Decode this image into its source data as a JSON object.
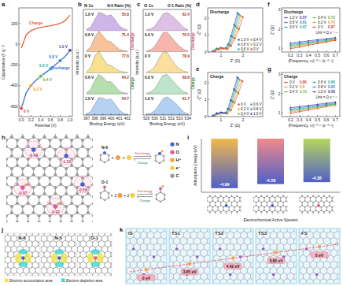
{
  "panel_labels": [
    "a",
    "b",
    "c",
    "d",
    "e",
    "f",
    "g",
    "h",
    "i",
    "j",
    "k"
  ],
  "chart_data": [
    {
      "type": "line",
      "x_label": "Potential (V)",
      "y_label": "Capacitance (F g⁻¹)",
      "x": [
        0,
        0.1,
        0.2,
        0.3,
        0.4,
        0.5,
        0.6,
        0.7,
        0.8,
        0.9,
        1.0
      ],
      "series": [
        {
          "name": "Charge",
          "color": "#e8603c",
          "values": [
            -40,
            90,
            130,
            150,
            160,
            170,
            178,
            188,
            200,
            225,
            280
          ]
        },
        {
          "name": "Discharge",
          "color": "#3a6fd8",
          "values": [
            -620,
            -470,
            -400,
            -350,
            -310,
            -275,
            -240,
            -200,
            -160,
            -120,
            -60
          ]
        }
      ],
      "points": [
        {
          "label": "1.0 V",
          "x": 1.0,
          "y": -60,
          "color": "#4b3fa8"
        },
        {
          "label": "0.8 V",
          "x": 0.8,
          "y": -160,
          "color": "#2f7fd8"
        },
        {
          "label": "0.6 V",
          "x": 0.6,
          "y": -240,
          "color": "#1fa89a"
        },
        {
          "label": "0.4 V",
          "x": 0.4,
          "y": -310,
          "color": "#6cb33e"
        },
        {
          "label": "0.2 V",
          "x": 0.2,
          "y": -400,
          "color": "#f09a28"
        },
        {
          "label": "0 V",
          "x": 0,
          "y": -620,
          "color": "#e0443a"
        }
      ],
      "xlim": [
        -0.05,
        1.05
      ],
      "xticks": [
        {
          "value": 0,
          "label": "0.0"
        },
        0.2,
        0.4,
        0.6,
        0.8,
        {
          "value": 1,
          "label": "1.0"
        }
      ],
      "ylim": [
        -700,
        350
      ],
      "yticks": [
        -600,
        -400,
        -200,
        0,
        200
      ]
    },
    {
      "type": "area",
      "title": "N 1s",
      "subtitle": "N-6 Ratio (%)",
      "x_label": "Binding Energy (eV)",
      "y_label": "Intensity (a.u.)",
      "tick_labels": "x",
      "x": [
        397,
        397.5,
        398,
        398.5,
        399,
        399.5,
        400,
        400.5,
        401,
        401.5,
        402
      ],
      "xlim": [
        396.6,
        402.4
      ],
      "xticks": [
        397,
        398,
        399,
        400,
        401,
        402
      ],
      "ylim": [
        0,
        1
      ],
      "series": [
        {
          "name": "1.0 V",
          "ratio": 55.8,
          "color": "#c8a8e6",
          "values": [
            0.05,
            0.15,
            0.45,
            0.75,
            0.7,
            0.6,
            0.65,
            0.45,
            0.2,
            0.08,
            0.03
          ]
        },
        {
          "name": "0.6 V",
          "ratio": 71.4,
          "color": "#f6b98a",
          "values": [
            0.05,
            0.2,
            0.6,
            0.85,
            0.65,
            0.45,
            0.4,
            0.25,
            0.1,
            0.05,
            0.03
          ]
        },
        {
          "name": "0 V",
          "ratio": 77.6,
          "color": "#f7dc7a",
          "values": [
            0.05,
            0.22,
            0.7,
            0.9,
            0.6,
            0.35,
            0.3,
            0.18,
            0.08,
            0.04,
            0.02
          ]
        },
        {
          "name": "0.6 V",
          "ratio": 64.2,
          "color": "#a8dba0",
          "values": [
            0.05,
            0.18,
            0.55,
            0.8,
            0.68,
            0.5,
            0.5,
            0.32,
            0.12,
            0.05,
            0.03
          ]
        },
        {
          "name": "1.0 V",
          "ratio": 54.7,
          "color": "#a9c9ee",
          "values": [
            0.05,
            0.15,
            0.45,
            0.72,
            0.7,
            0.62,
            0.66,
            0.45,
            0.2,
            0.08,
            0.03
          ]
        }
      ],
      "annotations": [
        "Discharge",
        "Charge"
      ]
    },
    {
      "type": "area",
      "title": "O 1s",
      "subtitle": "O-1 Ratio (%)",
      "x_label": "Binding Energy (eV)",
      "y_label": "Intensity (a.u.)",
      "tick_labels": "x",
      "x": [
        529,
        529.5,
        530,
        530.5,
        531,
        531.5,
        532,
        532.5,
        533,
        533.5,
        534
      ],
      "xlim": [
        528.6,
        534.4
      ],
      "xticks": [
        529,
        530,
        531,
        532,
        533,
        534
      ],
      "ylim": [
        0,
        1
      ],
      "series": [
        {
          "name": "1.0 V",
          "ratio": 62.4,
          "color": "#d8b4e2",
          "values": [
            0.03,
            0.07,
            0.18,
            0.42,
            0.68,
            0.75,
            0.62,
            0.48,
            0.3,
            0.12,
            0.04
          ]
        },
        {
          "name": "0.6 V",
          "ratio": 70.5,
          "color": "#f4a9a0",
          "values": [
            0.03,
            0.08,
            0.22,
            0.5,
            0.78,
            0.8,
            0.6,
            0.4,
            0.22,
            0.09,
            0.03
          ]
        },
        {
          "name": "0 V",
          "ratio": 78.9,
          "color": "#f9d98c",
          "values": [
            0.03,
            0.09,
            0.26,
            0.58,
            0.86,
            0.84,
            0.56,
            0.32,
            0.16,
            0.07,
            0.03
          ]
        },
        {
          "name": "0.6 V",
          "ratio": 69.8,
          "color": "#b0e0c0",
          "values": [
            0.03,
            0.08,
            0.21,
            0.49,
            0.77,
            0.8,
            0.61,
            0.41,
            0.23,
            0.09,
            0.03
          ]
        },
        {
          "name": "1.0 V",
          "ratio": 61.7,
          "color": "#a4c8f0",
          "values": [
            0.03,
            0.07,
            0.18,
            0.41,
            0.67,
            0.75,
            0.63,
            0.49,
            0.31,
            0.12,
            0.04
          ]
        }
      ],
      "annotations": [
        "Discharge",
        "Charge"
      ]
    },
    {
      "type": "scatter",
      "title": "Discharge",
      "x_label": "Z' (Ω)",
      "y_label": "-Z'' (Ω)",
      "xlim": [
        0.4,
        2.9
      ],
      "xticks": [
        1,
        2
      ],
      "ylim": [
        0,
        2.6
      ],
      "yticks": [
        0,
        1,
        2
      ],
      "line_style": "solid",
      "marker": "circle",
      "legend": "lower right",
      "series": [
        {
          "name": "1.0 V",
          "color": "#4b3fa8",
          "x": [
            0.62,
            0.8,
            1.0,
            1.2,
            1.32,
            1.45,
            1.6,
            1.75
          ],
          "values": [
            0.05,
            0.2,
            0.25,
            0.22,
            0.45,
            0.95,
            1.6,
            2.3
          ]
        },
        {
          "name": "0.8 V",
          "color": "#2f7fd8",
          "x": [
            0.64,
            0.82,
            1.02,
            1.22,
            1.35,
            1.48,
            1.63,
            1.78
          ],
          "values": [
            0.05,
            0.19,
            0.24,
            0.21,
            0.43,
            0.92,
            1.55,
            2.25
          ]
        },
        {
          "name": "0.6 V",
          "color": "#1fa89a",
          "x": [
            0.66,
            0.84,
            1.04,
            1.24,
            1.38,
            1.52,
            1.67,
            1.83
          ],
          "values": [
            0.05,
            0.18,
            0.23,
            0.2,
            0.42,
            0.9,
            1.5,
            2.2
          ]
        },
        {
          "name": "0.4 V",
          "color": "#6cb33e",
          "x": [
            0.68,
            0.86,
            1.06,
            1.26,
            1.41,
            1.56,
            1.72,
            1.88
          ],
          "values": [
            0.05,
            0.17,
            0.22,
            0.19,
            0.4,
            0.86,
            1.45,
            2.15
          ]
        },
        {
          "name": "0.2 V",
          "color": "#f09a28",
          "x": [
            0.7,
            0.88,
            1.08,
            1.28,
            1.44,
            1.6,
            1.77,
            1.94
          ],
          "values": [
            0.05,
            0.16,
            0.21,
            0.18,
            0.38,
            0.83,
            1.4,
            2.1
          ]
        },
        {
          "name": "0 V",
          "color": "#e0443a",
          "x": [
            0.72,
            0.9,
            1.1,
            1.3,
            1.47,
            1.64,
            1.82,
            2.0
          ],
          "values": [
            0.05,
            0.15,
            0.2,
            0.17,
            0.36,
            0.8,
            1.35,
            2.05
          ]
        }
      ]
    },
    {
      "type": "scatter",
      "title": "Charge",
      "x_label": "Z' (Ω)",
      "y_label": "-Z'' (Ω)",
      "xlim": [
        0.4,
        2.9
      ],
      "xticks": [
        1,
        2
      ],
      "ylim": [
        0,
        2.6
      ],
      "yticks": [
        0,
        1,
        2
      ],
      "line_style": "solid",
      "marker": "circle",
      "legend": "lower right",
      "series": [
        {
          "name": "0 V",
          "color": "#e0443a",
          "x": [
            0.72,
            0.9,
            1.1,
            1.3,
            1.46,
            1.62,
            1.8,
            1.98
          ],
          "values": [
            0.05,
            0.15,
            0.2,
            0.17,
            0.37,
            0.82,
            1.38,
            2.08
          ]
        },
        {
          "name": "0.2 V",
          "color": "#f09a28",
          "x": [
            0.7,
            0.88,
            1.08,
            1.28,
            1.43,
            1.58,
            1.75,
            1.92
          ],
          "values": [
            0.05,
            0.16,
            0.21,
            0.18,
            0.39,
            0.85,
            1.43,
            2.12
          ]
        },
        {
          "name": "0.4 V",
          "color": "#6cb33e",
          "x": [
            0.68,
            0.86,
            1.06,
            1.26,
            1.4,
            1.55,
            1.7,
            1.86
          ],
          "values": [
            0.05,
            0.17,
            0.22,
            0.19,
            0.41,
            0.88,
            1.48,
            2.17
          ]
        },
        {
          "name": "0.6 V",
          "color": "#1fa89a",
          "x": [
            0.66,
            0.84,
            1.04,
            1.24,
            1.37,
            1.51,
            1.66,
            1.81
          ],
          "values": [
            0.05,
            0.18,
            0.23,
            0.2,
            0.43,
            0.91,
            1.52,
            2.22
          ]
        },
        {
          "name": "0.8 V",
          "color": "#2f7fd8",
          "x": [
            0.64,
            0.82,
            1.02,
            1.22,
            1.34,
            1.47,
            1.62,
            1.77
          ],
          "values": [
            0.05,
            0.19,
            0.24,
            0.21,
            0.44,
            0.94,
            1.57,
            2.27
          ]
        },
        {
          "name": "1.0 V",
          "color": "#4b3fa8",
          "x": [
            0.62,
            0.8,
            1.0,
            1.2,
            1.31,
            1.44,
            1.59,
            1.74
          ],
          "values": [
            0.05,
            0.2,
            0.25,
            0.22,
            0.46,
            0.97,
            1.62,
            2.32
          ]
        }
      ]
    },
    {
      "type": "line",
      "title": "Discharge",
      "subtitle": "Unit = Ω s⁻⁰·⁵",
      "x_label": "(Frequency, ω)⁻⁰·⁵ (s⁻⁰·⁵)",
      "y_label": "Z' (Ω)",
      "marker": "circle",
      "legend": "upper left",
      "x": [
        0.2,
        0.3,
        0.4,
        0.5,
        0.6,
        0.7
      ],
      "xlim": [
        0.1,
        0.75
      ],
      "xticks": [
        0.2,
        0.3,
        0.4,
        0.5,
        0.6,
        0.7
      ],
      "ylim": [
        0.8,
        3.1
      ],
      "yticks": [
        1,
        2,
        3
      ],
      "series": [
        {
          "name": "1.0 V",
          "slope": 0.57,
          "color": "#4b3fa8",
          "values": [
            1.26,
            1.32,
            1.38,
            1.44,
            1.49,
            1.55
          ]
        },
        {
          "name": "0.8 V",
          "slope": 0.61,
          "color": "#2f7fd8",
          "values": [
            1.2,
            1.26,
            1.32,
            1.39,
            1.45,
            1.51
          ]
        },
        {
          "name": "0.6 V",
          "slope": 0.67,
          "color": "#1fa89a",
          "values": [
            1.14,
            1.21,
            1.28,
            1.35,
            1.41,
            1.48
          ]
        },
        {
          "name": "0.4 V",
          "slope": 0.72,
          "color": "#6cb33e",
          "values": [
            1.08,
            1.16,
            1.23,
            1.3,
            1.37,
            1.44
          ]
        },
        {
          "name": "0.2 V",
          "slope": 0.79,
          "color": "#f09a28",
          "values": [
            1.03,
            1.11,
            1.19,
            1.27,
            1.34,
            1.42
          ]
        },
        {
          "name": "0 V",
          "slope": 0.87,
          "color": "#e0443a",
          "values": [
            0.97,
            1.06,
            1.15,
            1.24,
            1.32,
            1.41
          ]
        }
      ]
    },
    {
      "type": "line",
      "title": "Charge",
      "subtitle": "Unit = Ω s⁻⁰·⁵",
      "x_label": "(Frequency, ω)⁻⁰·⁵ (s⁻⁰·⁵)",
      "y_label": "Z' (Ω)",
      "marker": "circle",
      "legend": "upper left",
      "x": [
        0.2,
        0.3,
        0.4,
        0.5,
        0.6,
        0.7
      ],
      "xlim": [
        0.1,
        0.75
      ],
      "xticks": [
        0.2,
        0.3,
        0.4,
        0.5,
        0.6,
        0.7
      ],
      "ylim": [
        0.8,
        3.1
      ],
      "yticks": [
        1,
        2,
        3
      ],
      "series": [
        {
          "name": "0 V",
          "slope": 0.86,
          "color": "#e0443a",
          "values": [
            0.97,
            1.06,
            1.14,
            1.23,
            1.32,
            1.4
          ]
        },
        {
          "name": "0.2 V",
          "slope": 0.8,
          "color": "#f09a28",
          "values": [
            1.03,
            1.11,
            1.19,
            1.27,
            1.35,
            1.43
          ]
        },
        {
          "name": "0.4 V",
          "slope": 0.73,
          "color": "#6cb33e",
          "values": [
            1.09,
            1.16,
            1.23,
            1.31,
            1.38,
            1.45
          ]
        },
        {
          "name": "0.6 V",
          "slope": 0.66,
          "color": "#1fa89a",
          "values": [
            1.14,
            1.21,
            1.27,
            1.34,
            1.41,
            1.47
          ]
        },
        {
          "name": "0.8 V",
          "slope": 0.62,
          "color": "#2f7fd8",
          "values": [
            1.2,
            1.27,
            1.33,
            1.39,
            1.45,
            1.51
          ]
        },
        {
          "name": "1.0 V",
          "slope": 0.58,
          "color": "#4b3fa8",
          "values": [
            1.27,
            1.32,
            1.38,
            1.44,
            1.5,
            1.56
          ]
        }
      ]
    },
    {
      "type": "bar",
      "y_label": "Adsorption Energy (eV)",
      "x_label": "Electrochemical Active Species",
      "categories": [
        null,
        null,
        null
      ],
      "values": [
        -4.99,
        -4.58,
        -4.38
      ],
      "colors": [
        "#f2b84b",
        "#f08a8a",
        "#b6d65a"
      ],
      "ylim": [
        -5.4,
        0
      ],
      "tick_labels": false,
      "data_labels": true
    }
  ],
  "reaction_scheme": {
    "atom_charges": [
      "-0.49",
      "-1.13",
      "-0.58",
      "-0.97",
      "-0.92"
    ],
    "plus": "+",
    "reactions": [
      {
        "reactant": "N-6",
        "forward": "Discharge",
        "backward": "Charge"
      },
      {
        "reactant": "O-1",
        "h_count": "2",
        "e_count": "2",
        "forward": "Discharge",
        "backward": "Charge"
      }
    ],
    "legend": [
      {
        "label": "N",
        "color": "#4a5fd0"
      },
      {
        "label": "O",
        "color": "#e05a9a"
      },
      {
        "label": "H⁺",
        "color": "#f0a040"
      },
      {
        "label": "e⁻",
        "color": "#f4d03f"
      },
      {
        "label": "C",
        "color": "#9a9a9a"
      }
    ]
  },
  "charge_density": {
    "labels": [
      "N-6",
      "N-5",
      "O-1"
    ],
    "legend": [
      {
        "label": "Electron accumulation area",
        "color": "#f2e24a"
      },
      {
        "label": "Electron depletion area",
        "color": "#3ed6d6"
      }
    ]
  },
  "diffusion_path": {
    "states": [
      {
        "label": "IS",
        "energy": "0 eV"
      },
      {
        "label": "TS1",
        "energy": "3.85 eV"
      },
      {
        "label": "TS2",
        "energy": "4.42 eV"
      },
      {
        "label": "TS3",
        "energy": "3.85 eV"
      },
      {
        "label": "FS",
        "energy": "0 eV"
      }
    ]
  }
}
